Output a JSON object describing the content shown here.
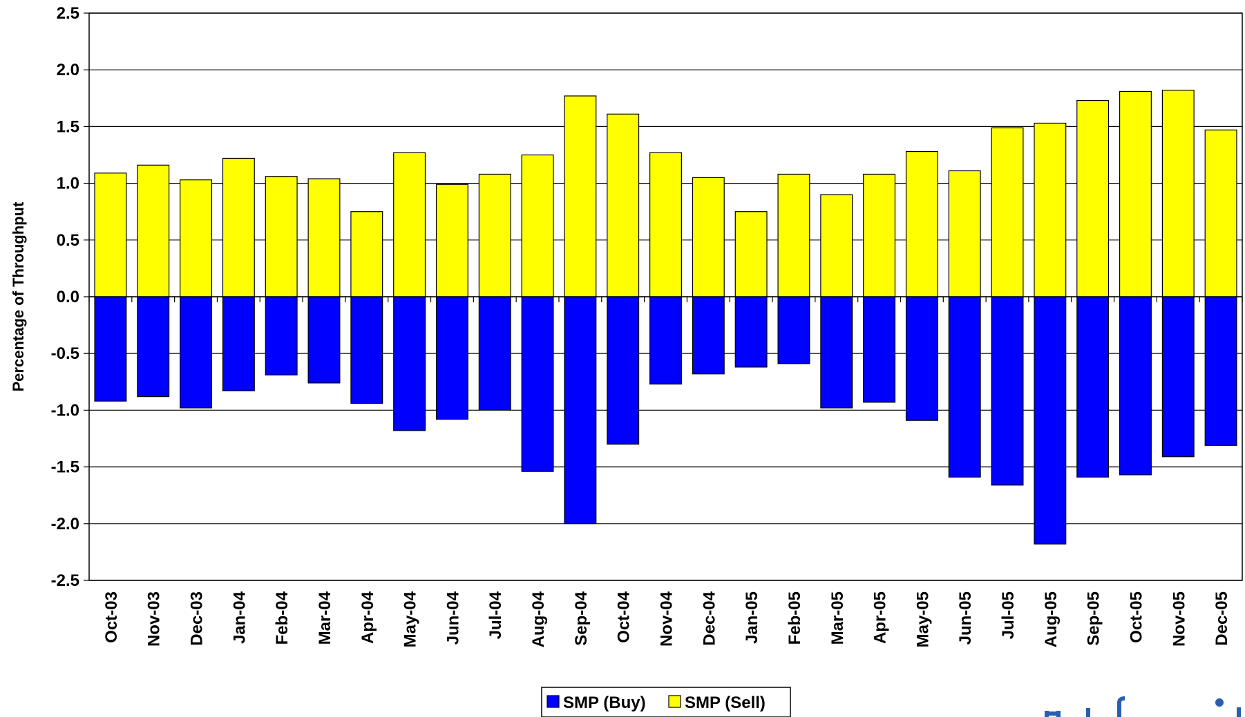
{
  "chart_data": {
    "type": "bar",
    "stacked": true,
    "title": "",
    "xlabel": "",
    "ylabel": "Percentage of Throughput",
    "ylim": [
      -2.5,
      2.5
    ],
    "yticks": [
      "2.5",
      "2.0",
      "1.5",
      "1.0",
      "0.5",
      "0.0",
      "-0.5",
      "-1.0",
      "-1.5",
      "-2.0",
      "-2.5"
    ],
    "grid": true,
    "legend_position": "bottom",
    "categories": [
      "Oct-03",
      "Nov-03",
      "Dec-03",
      "Jan-04",
      "Feb-04",
      "Mar-04",
      "Apr-04",
      "May-04",
      "Jun-04",
      "Jul-04",
      "Aug-04",
      "Sep-04",
      "Oct-04",
      "Nov-04",
      "Dec-04",
      "Jan-05",
      "Feb-05",
      "Mar-05",
      "Apr-05",
      "May-05",
      "Jun-05",
      "Jul-05",
      "Aug-05",
      "Sep-05",
      "Oct-05",
      "Nov-05",
      "Dec-05"
    ],
    "series": [
      {
        "name": "SMP (Buy)",
        "color": "#0000ff",
        "values": [
          -0.92,
          -0.88,
          -0.98,
          -0.83,
          -0.69,
          -0.76,
          -0.94,
          -1.18,
          -1.08,
          -1.0,
          -1.54,
          -2.0,
          -1.3,
          -0.77,
          -0.68,
          -0.62,
          -0.59,
          -0.98,
          -0.93,
          -1.09,
          -1.59,
          -1.66,
          -2.18,
          -1.59,
          -1.57,
          -1.41,
          -1.31
        ]
      },
      {
        "name": "SMP (Sell)",
        "color": "#ffff00",
        "values": [
          1.09,
          1.16,
          1.03,
          1.22,
          1.06,
          1.04,
          0.75,
          1.27,
          0.99,
          1.08,
          1.25,
          1.77,
          1.61,
          1.27,
          1.05,
          0.75,
          1.08,
          0.9,
          1.08,
          1.28,
          1.11,
          1.49,
          1.53,
          1.73,
          1.81,
          1.82,
          1.47
        ]
      }
    ]
  }
}
